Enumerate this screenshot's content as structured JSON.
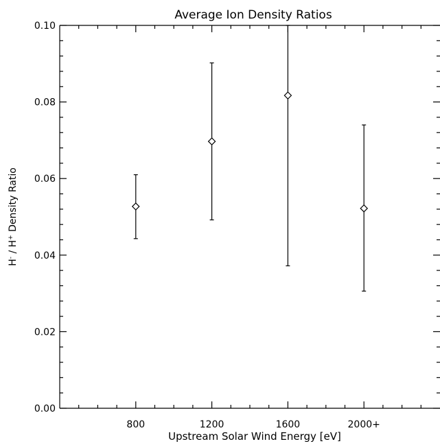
{
  "chart_data": {
    "type": "scatter",
    "title": "Average Ion Density Ratios",
    "xlabel": "Upstream Solar Wind Energy [eV]",
    "ylabel": {
      "parts": [
        "H",
        "-",
        " / H",
        "+",
        " Density Ratio"
      ]
    },
    "categories": [
      "800",
      "1200",
      "1600",
      "2000+"
    ],
    "x": [
      800,
      1200,
      1600,
      2000
    ],
    "xlim": [
      400,
      2400
    ],
    "ylim": [
      0.0,
      0.1
    ],
    "y_ticks": [
      0.0,
      0.02,
      0.04,
      0.06,
      0.08,
      0.1
    ],
    "y_tick_labels": [
      "0.00",
      "0.02",
      "0.04",
      "0.06",
      "0.08",
      "0.10"
    ],
    "points": [
      {
        "x": 800,
        "y": 0.0527,
        "err_low": 0.0443,
        "err_high": 0.061
      },
      {
        "x": 1200,
        "y": 0.0697,
        "err_low": 0.0492,
        "err_high": 0.0902
      },
      {
        "x": 1600,
        "y": 0.0817,
        "err_low": 0.0372,
        "err_high": 0.1
      },
      {
        "x": 2000,
        "y": 0.0522,
        "err_low": 0.0306,
        "err_high": 0.074
      }
    ],
    "marker": "diamond",
    "grid": false
  }
}
